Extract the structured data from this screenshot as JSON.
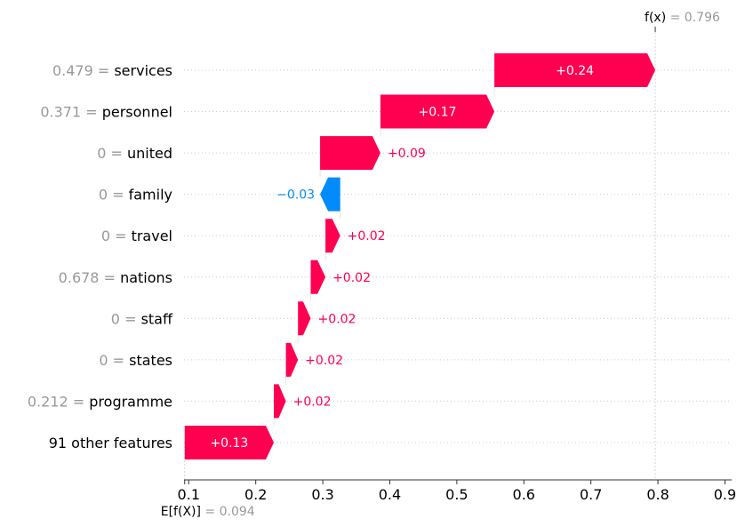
{
  "chart_data": {
    "type": "waterfall",
    "base_value": 0.094,
    "output_value": 0.796,
    "base_label": "E[f(X)]",
    "output_label": "f(x)",
    "base_value_text": "0.094",
    "output_value_text": "0.796",
    "xlim": [
      0.093,
      0.91
    ],
    "xticks": [
      0.1,
      0.2,
      0.3,
      0.4,
      0.5,
      0.6,
      0.7,
      0.8,
      0.9
    ],
    "xtick_labels": [
      "0.1",
      "0.2",
      "0.3",
      "0.4",
      "0.5",
      "0.6",
      "0.7",
      "0.8",
      "0.9"
    ],
    "colors": {
      "positive": "#ff0051",
      "negative": "#008bfb",
      "muted": "#999999"
    },
    "features": [
      {
        "value_text": "0.479",
        "name": "services",
        "contribution": 0.24,
        "label": "+0.24",
        "start": 0.556,
        "end": 0.796
      },
      {
        "value_text": "0.371",
        "name": "personnel",
        "contribution": 0.17,
        "label": "+0.17",
        "start": 0.386,
        "end": 0.556
      },
      {
        "value_text": "0",
        "name": "united",
        "contribution": 0.09,
        "label": "+0.09",
        "start": 0.296,
        "end": 0.386
      },
      {
        "value_text": "0",
        "name": "family",
        "contribution": -0.03,
        "label": "−0.03",
        "start": 0.326,
        "end": 0.296
      },
      {
        "value_text": "0",
        "name": "travel",
        "contribution": 0.02,
        "label": "+0.02",
        "start": 0.304,
        "end": 0.326
      },
      {
        "value_text": "0.678",
        "name": "nations",
        "contribution": 0.02,
        "label": "+0.02",
        "start": 0.282,
        "end": 0.304
      },
      {
        "value_text": "0",
        "name": "staff",
        "contribution": 0.02,
        "label": "+0.02",
        "start": 0.263,
        "end": 0.282
      },
      {
        "value_text": "0",
        "name": "states",
        "contribution": 0.02,
        "label": "+0.02",
        "start": 0.245,
        "end": 0.263
      },
      {
        "value_text": "0.212",
        "name": "programme",
        "contribution": 0.02,
        "label": "+0.02",
        "start": 0.227,
        "end": 0.245
      },
      {
        "value_text": "",
        "name": "91 other features",
        "contribution": 0.13,
        "label": "+0.13",
        "start": 0.094,
        "end": 0.227
      }
    ]
  }
}
